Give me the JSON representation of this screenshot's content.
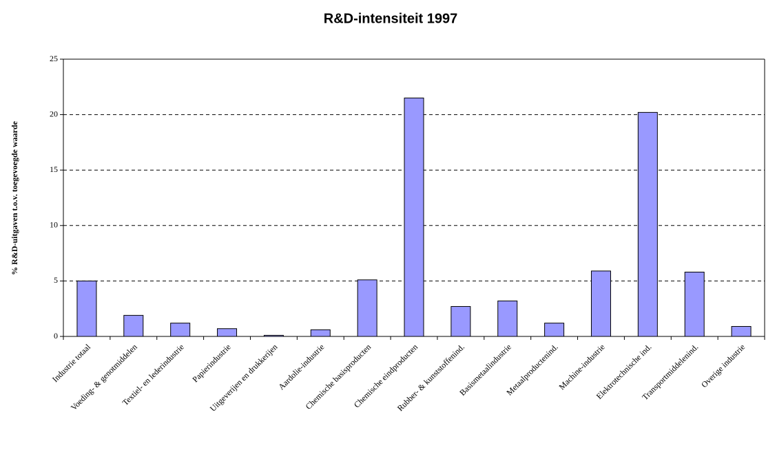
{
  "chart_data": {
    "type": "bar",
    "title": "R&D-intensiteit 1997",
    "y_label": "% R&D-uitgaven t.o.v. toegevoegde waarde",
    "categories": [
      "Industrie totaal",
      "Voeding- & genotmiddelen",
      "Textiel- en lederindustrie",
      "Papierindustrie",
      "Uitgeverijen en drukkerijen",
      "Aardolie-industrie",
      "Chemische basisproducten",
      "Chemische eindproducten",
      "Rubber- & kunststoffenind.",
      "Basismetaalindustrie",
      "Metaalproductenind.",
      "Machine-industrie",
      "Elektrotechnische ind.",
      "Transportmiddelenind.",
      "Overige industrie"
    ],
    "values": [
      5.0,
      1.9,
      1.2,
      0.7,
      0.1,
      0.6,
      5.1,
      21.5,
      2.7,
      3.2,
      1.2,
      5.9,
      20.2,
      5.8,
      0.9
    ],
    "color": "#9999ff",
    "ylim": [
      0,
      25
    ],
    "yticks": [
      0,
      5,
      10,
      15,
      20,
      25
    ],
    "grid": true
  }
}
